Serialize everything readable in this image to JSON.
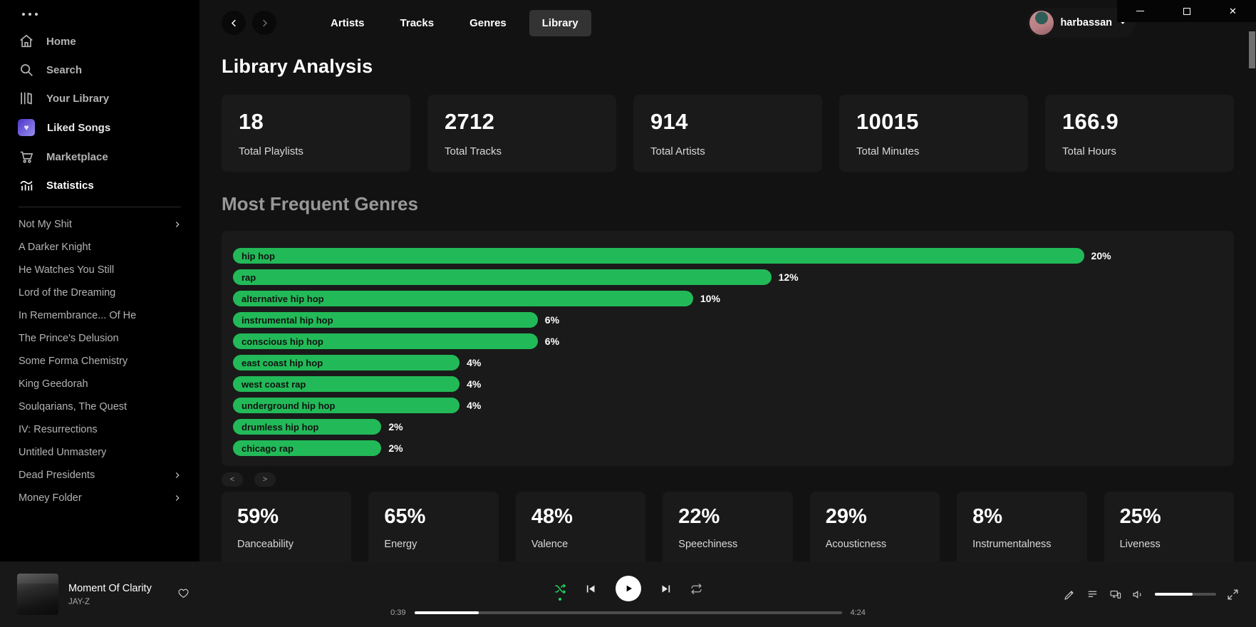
{
  "window": {
    "controls": [
      "minimize-icon",
      "maximize-icon",
      "close-icon"
    ]
  },
  "sidebar": {
    "menu_icon": "ellipsis-menu-icon",
    "nav_items": [
      {
        "label": "Home",
        "icon": "home-icon",
        "active": false,
        "bright": false
      },
      {
        "label": "Search",
        "icon": "search-icon",
        "active": false,
        "bright": false
      },
      {
        "label": "Your Library",
        "icon": "library-icon",
        "active": false,
        "bright": false
      },
      {
        "label": "Liked Songs",
        "icon": "liked-heart-icon",
        "active": false,
        "bright": true
      },
      {
        "label": "Marketplace",
        "icon": "cart-icon",
        "active": false,
        "bright": false
      },
      {
        "label": "Statistics",
        "icon": "stats-icon",
        "active": true,
        "bright": false
      }
    ],
    "playlists": [
      {
        "label": "Not My Shit",
        "folder": true
      },
      {
        "label": "A Darker Knight",
        "folder": false
      },
      {
        "label": "He Watches You Still",
        "folder": false
      },
      {
        "label": "Lord of the Dreaming",
        "folder": false
      },
      {
        "label": "In Remembrance... Of He",
        "folder": false
      },
      {
        "label": "The Prince's Delusion",
        "folder": false
      },
      {
        "label": "Some Forma Chemistry",
        "folder": false
      },
      {
        "label": "King Geedorah",
        "folder": false
      },
      {
        "label": "Soulqarians, The Quest",
        "folder": false
      },
      {
        "label": "IV: Resurrections",
        "folder": false
      },
      {
        "label": "Untitled Unmastery",
        "folder": false
      },
      {
        "label": "Dead Presidents",
        "folder": true
      },
      {
        "label": "Money Folder",
        "folder": true
      }
    ]
  },
  "topbar": {
    "back_icon": "chevron-left-icon",
    "forward_icon": "chevron-right-icon",
    "tabs": [
      {
        "label": "Artists",
        "active": false
      },
      {
        "label": "Tracks",
        "active": false
      },
      {
        "label": "Genres",
        "active": false
      },
      {
        "label": "Library",
        "active": true
      }
    ],
    "user": {
      "name": "harbassan",
      "caret_icon": "caret-down-icon"
    }
  },
  "main": {
    "title": "Library Analysis",
    "summary_stats": [
      {
        "value": "18",
        "label": "Total Playlists"
      },
      {
        "value": "2712",
        "label": "Total Tracks"
      },
      {
        "value": "914",
        "label": "Total Artists"
      },
      {
        "value": "10015",
        "label": "Total Minutes"
      },
      {
        "value": "166.9",
        "label": "Total Hours"
      }
    ],
    "genres_heading": "Most Frequent Genres",
    "pager": {
      "prev": "<",
      "next": ">"
    },
    "feature_stats": [
      {
        "value": "59%",
        "label": "Danceability"
      },
      {
        "value": "65%",
        "label": "Energy"
      },
      {
        "value": "48%",
        "label": "Valence"
      },
      {
        "value": "22%",
        "label": "Speechiness"
      },
      {
        "value": "29%",
        "label": "Acousticness"
      },
      {
        "value": "8%",
        "label": "Instrumentalness"
      },
      {
        "value": "25%",
        "label": "Liveness"
      }
    ]
  },
  "chart_data": {
    "type": "bar",
    "orientation": "horizontal",
    "title": "Most Frequent Genres",
    "categories": [
      "hip hop",
      "rap",
      "alternative hip hop",
      "instrumental hip hop",
      "conscious hip hop",
      "east coast hip hop",
      "west coast rap",
      "underground hip hop",
      "drumless hip hop",
      "chicago rap"
    ],
    "values": [
      20,
      12,
      10,
      6,
      6,
      4,
      4,
      4,
      2,
      2
    ],
    "unit": "%",
    "xlim": [
      0,
      20
    ],
    "bar_color": "#22ba58",
    "inside_label_color": "#121212",
    "value_label_color": "#ffffff",
    "grid": false,
    "legend": false
  },
  "player": {
    "track": {
      "title": "Moment Of Clarity",
      "artist": "JAY-Z"
    },
    "heart_icon": "heart-outline-icon",
    "controls": [
      "shuffle-icon",
      "previous-icon",
      "play-icon",
      "next-icon",
      "repeat-icon"
    ],
    "shuffle_active": true,
    "elapsed": "0:39",
    "duration": "4:24",
    "progress_pct": 15,
    "right_controls": [
      "pencil-icon",
      "queue-icon",
      "connect-device-icon",
      "volume-icon",
      "fullscreen-icon"
    ],
    "volume_pct": 62
  },
  "colors": {
    "accent_green": "#22ba58",
    "shuffle_green": "#1ed760",
    "card_bg": "#1a1a1a",
    "main_bg": "#121212",
    "sidebar_bg": "#000000"
  }
}
